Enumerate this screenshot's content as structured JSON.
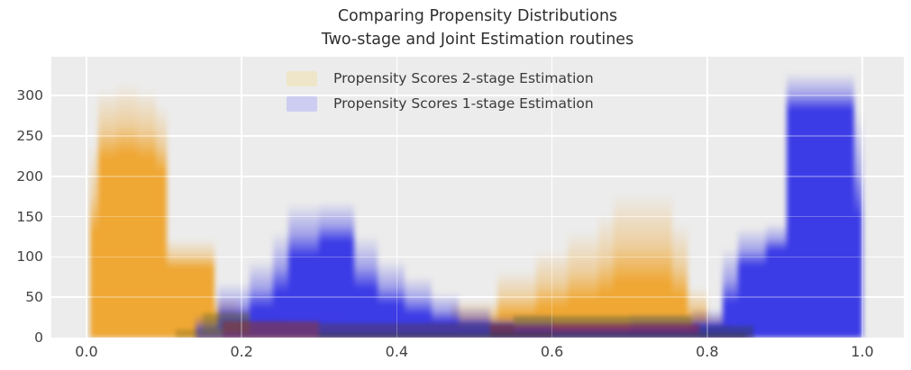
{
  "figure": {
    "background": "#ffffff",
    "axes_background": "#ececec",
    "grid_color": "#ffffff",
    "text_color": "#3a3a3a"
  },
  "chart_data": {
    "type": "bar",
    "subtype": "overlaid-bootstrap-histograms",
    "title_line1": "Comparing Propensity Distributions",
    "title_line2": "Two-stage and Joint Estimation routines",
    "xlabel": "",
    "ylabel": "",
    "xlim": [
      -0.045,
      1.053
    ],
    "ylim": [
      0,
      348
    ],
    "grid": true,
    "legend_position": "upper center",
    "xticks": [
      {
        "value": 0.0,
        "label": "0.0"
      },
      {
        "value": 0.2,
        "label": "0.2"
      },
      {
        "value": 0.4,
        "label": "0.4"
      },
      {
        "value": 0.6,
        "label": "0.6"
      },
      {
        "value": 0.8,
        "label": "0.8"
      },
      {
        "value": 1.0,
        "label": "1.0"
      }
    ],
    "yticks": [
      {
        "value": 0,
        "label": "0"
      },
      {
        "value": 50,
        "label": "50"
      },
      {
        "value": 100,
        "label": "100"
      },
      {
        "value": 150,
        "label": "150"
      },
      {
        "value": 200,
        "label": "200"
      },
      {
        "value": 250,
        "label": "250"
      },
      {
        "value": 300,
        "label": "300"
      }
    ],
    "bins_format": [
      "x_start",
      "x_end",
      "max_count_envelope",
      "solid_core_count"
    ],
    "series": [
      {
        "name": "Propensity Scores 2-stage Estimation",
        "color": "#efa42c",
        "legend_swatch": "#efe6ca",
        "bins": [
          [
            0.005,
            0.015,
            240,
            130
          ],
          [
            0.015,
            0.04,
            308,
            222
          ],
          [
            0.04,
            0.065,
            316,
            228
          ],
          [
            0.065,
            0.09,
            308,
            222
          ],
          [
            0.09,
            0.103,
            288,
            205
          ],
          [
            0.103,
            0.165,
            122,
            86
          ],
          [
            0.165,
            0.195,
            50,
            24
          ],
          [
            0.195,
            0.25,
            40,
            16
          ],
          [
            0.25,
            0.32,
            30,
            11
          ],
          [
            0.32,
            0.4,
            26,
            9
          ],
          [
            0.4,
            0.47,
            30,
            11
          ],
          [
            0.47,
            0.53,
            46,
            16
          ],
          [
            0.53,
            0.58,
            82,
            26
          ],
          [
            0.58,
            0.62,
            108,
            36
          ],
          [
            0.62,
            0.66,
            132,
            46
          ],
          [
            0.66,
            0.68,
            152,
            55
          ],
          [
            0.68,
            0.755,
            178,
            68
          ],
          [
            0.755,
            0.775,
            142,
            50
          ],
          [
            0.775,
            0.8,
            62,
            20
          ],
          [
            0.8,
            0.83,
            30,
            9
          ],
          [
            0.83,
            0.86,
            12,
            3
          ]
        ]
      },
      {
        "name": "Propensity Scores 1-stage Estimation",
        "color": "#3434e6",
        "legend_swatch": "#cdcdf2",
        "bins": [
          [
            0.14,
            0.17,
            28,
            6
          ],
          [
            0.17,
            0.21,
            68,
            20
          ],
          [
            0.21,
            0.24,
            96,
            36
          ],
          [
            0.24,
            0.26,
            132,
            56
          ],
          [
            0.26,
            0.3,
            166,
            100
          ],
          [
            0.3,
            0.345,
            168,
            118
          ],
          [
            0.345,
            0.375,
            126,
            60
          ],
          [
            0.375,
            0.41,
            96,
            40
          ],
          [
            0.41,
            0.445,
            76,
            28
          ],
          [
            0.445,
            0.48,
            56,
            18
          ],
          [
            0.48,
            0.52,
            40,
            13
          ],
          [
            0.52,
            0.6,
            28,
            10
          ],
          [
            0.6,
            0.7,
            24,
            8
          ],
          [
            0.7,
            0.78,
            28,
            10
          ],
          [
            0.78,
            0.82,
            36,
            12
          ],
          [
            0.82,
            0.84,
            112,
            42
          ],
          [
            0.84,
            0.876,
            136,
            88
          ],
          [
            0.876,
            0.902,
            142,
            108
          ],
          [
            0.902,
            0.99,
            328,
            282
          ],
          [
            0.99,
            1.0,
            280,
            150
          ]
        ]
      }
    ],
    "overlap_band_segments": [
      {
        "x0": 0.115,
        "x1": 0.175,
        "y0": 0,
        "y1": 10,
        "color": "rgba(150,120,30,0.45)"
      },
      {
        "x0": 0.15,
        "x1": 0.21,
        "y0": 6,
        "y1": 30,
        "color": "rgba(110,110,30,0.40)"
      },
      {
        "x0": 0.175,
        "x1": 0.3,
        "y0": 0,
        "y1": 20,
        "color": "rgba(140,55,40,0.55)"
      },
      {
        "x0": 0.3,
        "x1": 0.55,
        "y0": 6,
        "y1": 18,
        "color": "rgba(80,60,95,0.50)"
      },
      {
        "x0": 0.52,
        "x1": 0.6,
        "y0": 0,
        "y1": 16,
        "color": "rgba(125,45,50,0.55)"
      },
      {
        "x0": 0.55,
        "x1": 0.78,
        "y0": 16,
        "y1": 27,
        "color": "rgba(105,105,40,0.45)"
      },
      {
        "x0": 0.6,
        "x1": 0.79,
        "y0": 4,
        "y1": 17,
        "color": "rgba(135,40,55,0.60)"
      },
      {
        "x0": 0.3,
        "x1": 0.85,
        "y0": 0,
        "y1": 6,
        "color": "rgba(60,58,70,0.65)"
      },
      {
        "x0": 0.79,
        "x1": 0.86,
        "y0": 0,
        "y1": 14,
        "color": "rgba(55,60,110,0.55)"
      }
    ]
  }
}
